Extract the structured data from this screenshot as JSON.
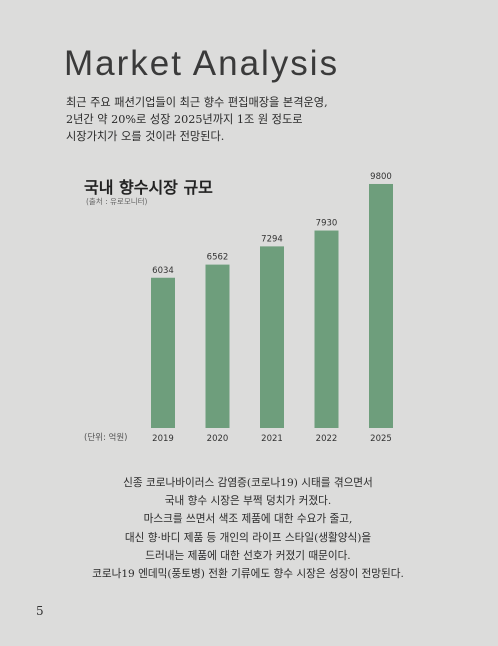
{
  "title": "Market Analysis",
  "intro_lines": [
    "최근 주요 패션기업들이 최근 향수 편집매장을 본격운영,",
    "2년간 약 20%로 성장 2025년까지 1조 원 정도로",
    "시장가치가 오를 것이라 전망된다."
  ],
  "chart_data": {
    "type": "bar",
    "title": "국내 향수시장 규모",
    "source": "(출처 : 유로모니터)",
    "unit_label": "(단위: 억원)",
    "categories": [
      "2019",
      "2020",
      "2021",
      "2022",
      "2025"
    ],
    "values": [
      6034,
      6562,
      7294,
      7930,
      9800
    ],
    "ylim": [
      0,
      10000
    ],
    "grid": false,
    "bar_color": "#6e9e7c"
  },
  "body_lines": [
    "신종 코로나바이러스 감염증(코로나19) 시태를 겪으면서",
    "국내 향수 시장은 부쩍 덩치가 커졌다.",
    "마스크를 쓰면서 색조 제품에 대한 수요가 줄고,",
    "대신 향·바디 제품 등 개인의 라이프 스타일(생활양식)을",
    "드러내는 제품에 대한 선호가 커졌기 때문이다.",
    "코로나19 엔데믹(풍토병) 전환 기류에도 향수 시장은 성장이 전망된다."
  ],
  "page_number": "5"
}
